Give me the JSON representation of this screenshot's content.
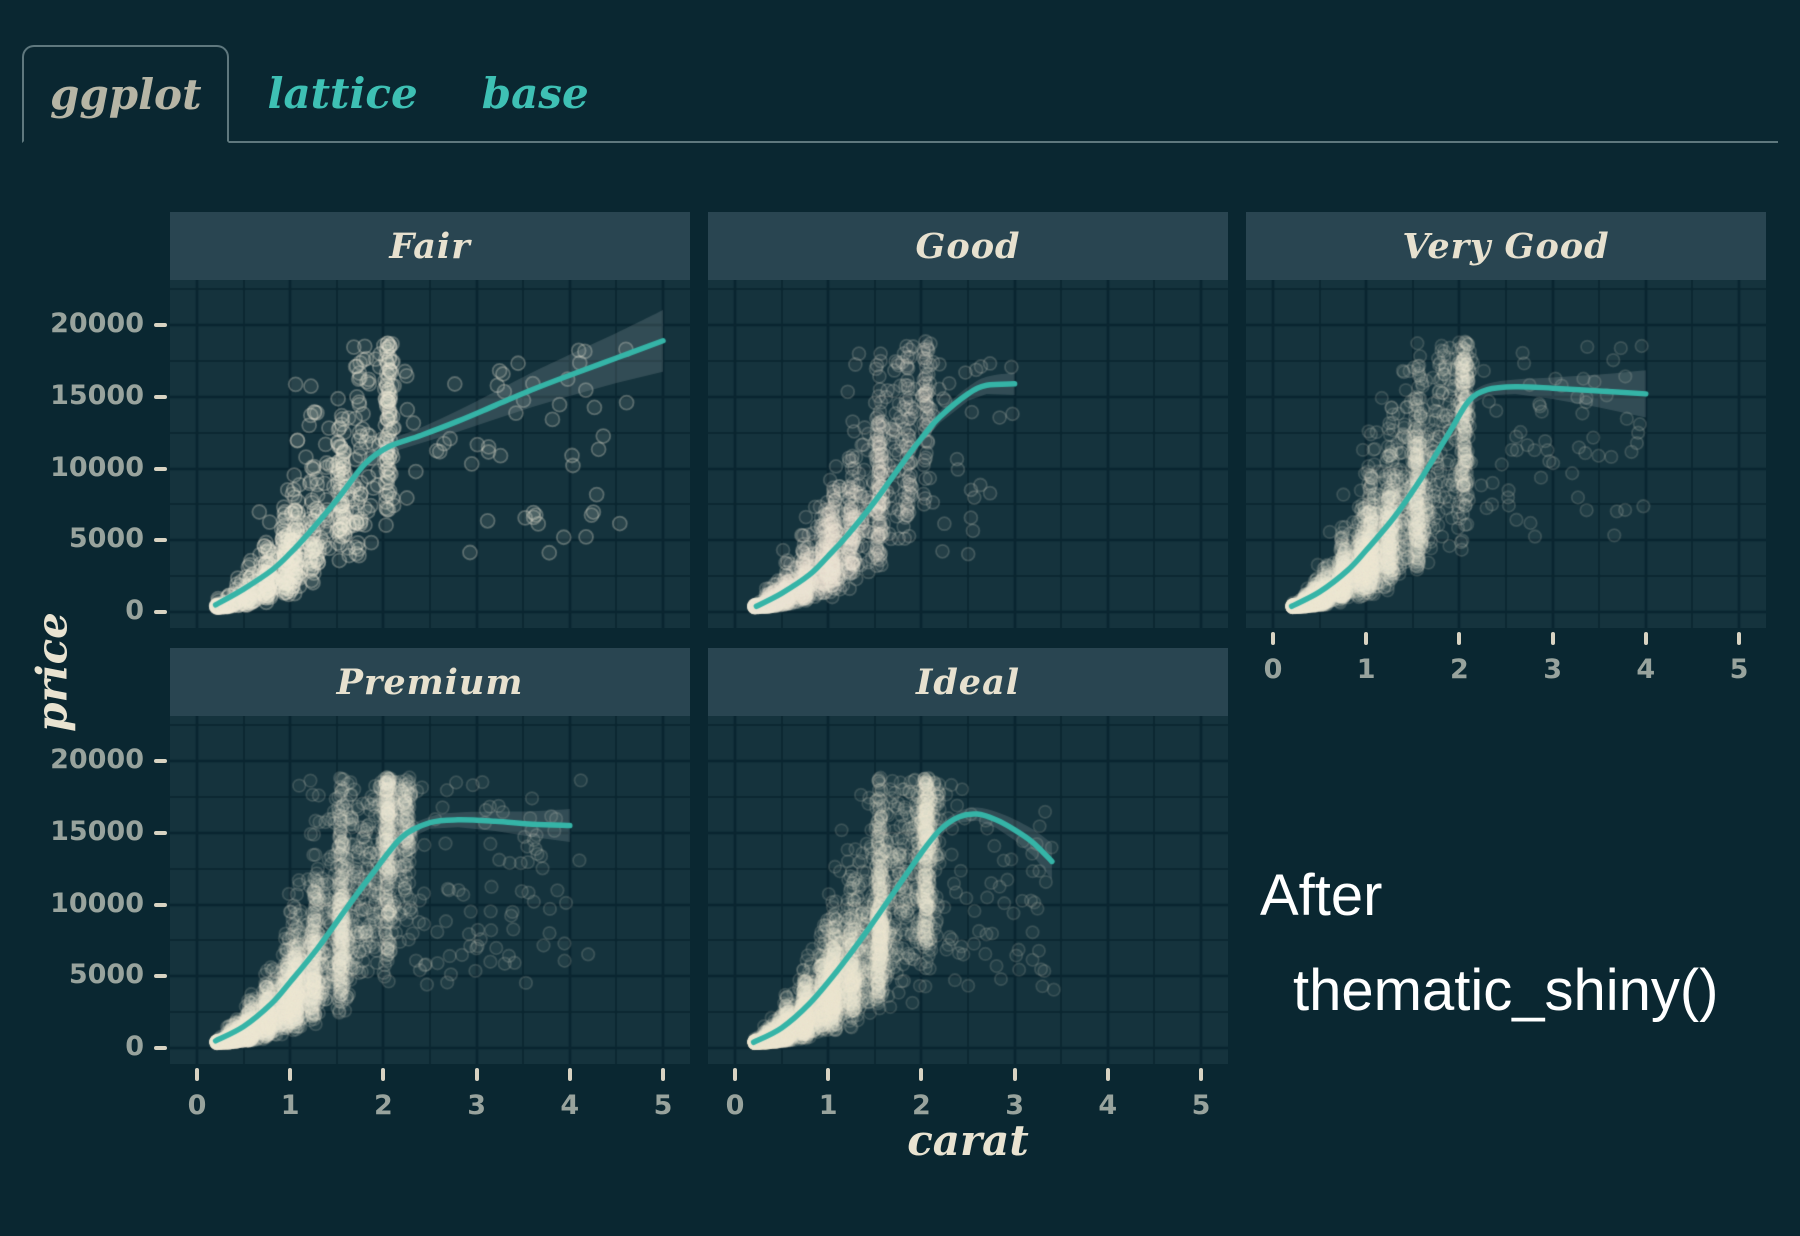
{
  "tabs": {
    "items": [
      {
        "label": "ggplot",
        "active": true
      },
      {
        "label": "lattice",
        "active": false
      },
      {
        "label": "base",
        "active": false
      }
    ]
  },
  "annotation": {
    "line1": "After",
    "line2": "thematic_shiny()",
    "color": "#ffffff"
  },
  "colors": {
    "page_bg": "#0a2731",
    "panel_bg": "#15333d",
    "grid": "#0a2530",
    "strip_bg": "#294551",
    "strip_text": "#e7e1cf",
    "accent_teal": "#35b4a7",
    "tab_inactive_text": "#3ec0b4",
    "tab_active_text": "#b6b5a5",
    "tab_border": "#5f787e",
    "tick_label": "#98a39d",
    "tick_mark": "#d8d3c2",
    "point_cream": "#efe9d8",
    "ribbon": "rgba(203,214,213,0.16)"
  },
  "chart_data": {
    "type": "scatter",
    "title": "",
    "xlabel": "carat",
    "ylabel": "price",
    "facet_by": "cut",
    "grid": "on",
    "legend": "none",
    "x_ticks": [
      0,
      1,
      2,
      3,
      4,
      5
    ],
    "y_ticks": [
      0,
      5000,
      10000,
      15000,
      20000
    ],
    "xlim": [
      -0.29,
      5.29
    ],
    "ylim": [
      -1100,
      23100
    ],
    "minor_grid_x": 0.5,
    "minor_grid_y": 2500,
    "price_model": {
      "k": 3600,
      "exp": 1.9,
      "cap": 18900,
      "floor": 340
    },
    "facets": [
      {
        "label": "Fair",
        "row": 0,
        "col": 0,
        "smooth": [
          [
            0.2,
            500
          ],
          [
            0.5,
            1600
          ],
          [
            0.8,
            2900
          ],
          [
            1.0,
            4100
          ],
          [
            1.2,
            5500
          ],
          [
            1.5,
            7800
          ],
          [
            1.8,
            10300
          ],
          [
            2.05,
            11500
          ],
          [
            2.4,
            12300
          ],
          [
            2.8,
            13300
          ],
          [
            3.2,
            14400
          ],
          [
            3.6,
            15500
          ],
          [
            4.0,
            16500
          ],
          [
            4.5,
            17700
          ],
          [
            5.0,
            18900
          ]
        ],
        "ribbon": [
          [
            0.2,
            260
          ],
          [
            1.0,
            300
          ],
          [
            2.0,
            420
          ],
          [
            2.5,
            560
          ],
          [
            3.0,
            850
          ],
          [
            3.5,
            1150
          ],
          [
            4.0,
            1450
          ],
          [
            4.5,
            1750
          ],
          [
            5.0,
            2150
          ]
        ],
        "cloud": {
          "n": 820,
          "seed": 11,
          "peak_prob": 0.5,
          "peaks": [
            [
              0.5,
              2
            ],
            [
              0.7,
              4
            ],
            [
              0.9,
              5
            ],
            [
              1.0,
              5
            ],
            [
              1.2,
              3
            ],
            [
              1.5,
              4
            ],
            [
              1.7,
              2
            ],
            [
              2.0,
              4
            ]
          ],
          "cont_max": 2.1,
          "cont_pow": 1.6,
          "out_prob": 0.07,
          "out_range": [
            2.2,
            4.7
          ],
          "noise": 0.45,
          "r": 7,
          "fill_a": 0.1,
          "stroke_a": 0.28
        }
      },
      {
        "label": "Good",
        "row": 0,
        "col": 1,
        "smooth": [
          [
            0.23,
            400
          ],
          [
            0.5,
            1300
          ],
          [
            0.8,
            2600
          ],
          [
            1.0,
            3900
          ],
          [
            1.2,
            5300
          ],
          [
            1.5,
            7700
          ],
          [
            1.8,
            10400
          ],
          [
            2.0,
            12100
          ],
          [
            2.2,
            13600
          ],
          [
            2.5,
            15200
          ],
          [
            2.7,
            15800
          ],
          [
            3.0,
            15900
          ]
        ],
        "ribbon": [
          [
            0.23,
            220
          ],
          [
            1.0,
            260
          ],
          [
            1.5,
            300
          ],
          [
            2.0,
            380
          ],
          [
            2.5,
            480
          ],
          [
            3.0,
            780
          ]
        ],
        "cloud": {
          "n": 1600,
          "seed": 22,
          "peak_prob": 0.55,
          "peaks": [
            [
              0.3,
              4
            ],
            [
              0.4,
              3
            ],
            [
              0.5,
              5
            ],
            [
              0.7,
              5
            ],
            [
              0.9,
              4
            ],
            [
              1.0,
              6
            ],
            [
              1.2,
              4
            ],
            [
              1.5,
              5
            ],
            [
              1.8,
              2
            ],
            [
              2.0,
              3
            ]
          ],
          "cont_max": 1.9,
          "cont_pow": 2.0,
          "out_prob": 0.02,
          "out_range": [
            2.0,
            3.0
          ],
          "noise": 0.42,
          "r": 6.5,
          "fill_a": 0.07,
          "stroke_a": 0.18
        }
      },
      {
        "label": "Very Good",
        "row": 0,
        "col": 2,
        "smooth": [
          [
            0.2,
            400
          ],
          [
            0.5,
            1400
          ],
          [
            0.8,
            2900
          ],
          [
            1.0,
            4300
          ],
          [
            1.3,
            6600
          ],
          [
            1.6,
            9400
          ],
          [
            1.9,
            12600
          ],
          [
            2.1,
            14700
          ],
          [
            2.3,
            15500
          ],
          [
            2.6,
            15700
          ],
          [
            3.0,
            15600
          ],
          [
            3.5,
            15400
          ],
          [
            4.0,
            15200
          ]
        ],
        "ribbon": [
          [
            0.2,
            200
          ],
          [
            1.0,
            240
          ],
          [
            2.0,
            340
          ],
          [
            2.5,
            450
          ],
          [
            3.0,
            750
          ],
          [
            3.5,
            1150
          ],
          [
            4.0,
            1650
          ]
        ],
        "cloud": {
          "n": 3300,
          "seed": 33,
          "peak_prob": 0.55,
          "peaks": [
            [
              0.3,
              5
            ],
            [
              0.4,
              4
            ],
            [
              0.5,
              5
            ],
            [
              0.7,
              5
            ],
            [
              0.9,
              4
            ],
            [
              1.0,
              6
            ],
            [
              1.2,
              4
            ],
            [
              1.5,
              5
            ],
            [
              2.0,
              4
            ]
          ],
          "cont_max": 2.1,
          "cont_pow": 2.1,
          "out_prob": 0.02,
          "out_range": [
            2.2,
            4.0
          ],
          "noise": 0.42,
          "r": 6.3,
          "fill_a": 0.06,
          "stroke_a": 0.15
        }
      },
      {
        "label": "Premium",
        "row": 1,
        "col": 0,
        "smooth": [
          [
            0.2,
            500
          ],
          [
            0.5,
            1500
          ],
          [
            0.8,
            3100
          ],
          [
            1.0,
            4600
          ],
          [
            1.3,
            7000
          ],
          [
            1.6,
            9700
          ],
          [
            1.9,
            12300
          ],
          [
            2.2,
            14700
          ],
          [
            2.5,
            15700
          ],
          [
            2.8,
            15900
          ],
          [
            3.2,
            15800
          ],
          [
            3.6,
            15600
          ],
          [
            4.0,
            15500
          ]
        ],
        "ribbon": [
          [
            0.2,
            200
          ],
          [
            1.0,
            240
          ],
          [
            2.0,
            330
          ],
          [
            2.5,
            420
          ],
          [
            3.0,
            580
          ],
          [
            3.5,
            830
          ],
          [
            4.0,
            1150
          ]
        ],
        "cloud": {
          "n": 3700,
          "seed": 44,
          "peak_prob": 0.55,
          "peaks": [
            [
              0.3,
              5
            ],
            [
              0.4,
              4
            ],
            [
              0.5,
              5
            ],
            [
              0.7,
              5
            ],
            [
              0.9,
              4
            ],
            [
              1.0,
              6
            ],
            [
              1.2,
              5
            ],
            [
              1.5,
              5
            ],
            [
              2.0,
              5
            ],
            [
              2.2,
              2
            ]
          ],
          "cont_max": 2.3,
          "cont_pow": 2.0,
          "out_prob": 0.03,
          "out_range": [
            2.3,
            4.2
          ],
          "noise": 0.42,
          "r": 6.3,
          "fill_a": 0.06,
          "stroke_a": 0.15
        }
      },
      {
        "label": "Ideal",
        "row": 1,
        "col": 1,
        "smooth": [
          [
            0.2,
            400
          ],
          [
            0.5,
            1400
          ],
          [
            0.8,
            3100
          ],
          [
            1.1,
            5400
          ],
          [
            1.4,
            8000
          ],
          [
            1.7,
            10800
          ],
          [
            2.0,
            13600
          ],
          [
            2.2,
            15200
          ],
          [
            2.4,
            16100
          ],
          [
            2.6,
            16300
          ],
          [
            2.8,
            15900
          ],
          [
            3.0,
            15200
          ],
          [
            3.2,
            14300
          ],
          [
            3.4,
            13000
          ]
        ],
        "ribbon": [
          [
            0.2,
            160
          ],
          [
            1.0,
            210
          ],
          [
            2.0,
            310
          ],
          [
            2.5,
            420
          ],
          [
            2.8,
            560
          ],
          [
            3.0,
            720
          ],
          [
            3.2,
            920
          ],
          [
            3.4,
            1250
          ]
        ],
        "cloud": {
          "n": 4800,
          "seed": 55,
          "peak_prob": 0.55,
          "peaks": [
            [
              0.3,
              6
            ],
            [
              0.4,
              4
            ],
            [
              0.5,
              6
            ],
            [
              0.7,
              6
            ],
            [
              0.9,
              3
            ],
            [
              1.0,
              7
            ],
            [
              1.2,
              4
            ],
            [
              1.5,
              6
            ],
            [
              2.0,
              5
            ]
          ],
          "cont_max": 2.2,
          "cont_pow": 2.2,
          "out_prob": 0.012,
          "out_range": [
            2.2,
            3.45
          ],
          "noise": 0.42,
          "r": 6.2,
          "fill_a": 0.055,
          "stroke_a": 0.14
        }
      }
    ]
  }
}
